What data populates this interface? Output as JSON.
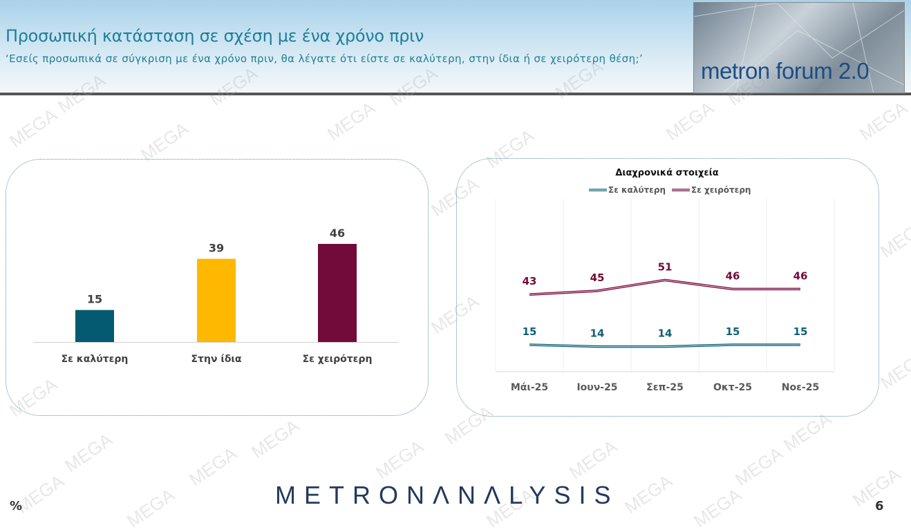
{
  "header": {
    "title": "Προσωπική κατάσταση σε σχέση με ένα χρόνο πριν",
    "subtitle": "‘Εσείς προσωπικά σε σύγκριση με ένα χρόνο πριν, θα λέγατε ότι είστε σε καλύτερη, στην ίδια ή σε χειρότερη θέση;’",
    "logo_text": "metron forum 2.0"
  },
  "watermark": "MEGA",
  "footer": {
    "brand": "METRONΛNΛLYSIS",
    "unit": "%",
    "page": "6"
  },
  "chart_data": [
    {
      "type": "bar",
      "categories": [
        "Σε καλύτερη",
        "Στην ίδια",
        "Σε χειρότερη"
      ],
      "values": [
        15,
        39,
        46
      ],
      "colors": [
        "#035a71",
        "#ffb800",
        "#720a3a"
      ],
      "ylim": [
        0,
        50
      ],
      "grid": false
    },
    {
      "type": "line",
      "title": "Διαχρονικά στοιχεία",
      "categories": [
        "Μάι-25",
        "Ιουν-25",
        "Σεπ-25",
        "Οκτ-25",
        "Νοε-25"
      ],
      "series": [
        {
          "name": "Σε καλύτερη",
          "values": [
            15,
            14,
            14,
            15,
            15
          ],
          "color": "#0e5f73"
        },
        {
          "name": "Σε χειρότερη",
          "values": [
            43,
            45,
            51,
            46,
            46
          ],
          "color": "#720a3a"
        }
      ],
      "ylim": [
        0,
        100
      ],
      "legend": "top",
      "grid": "vertical"
    }
  ]
}
